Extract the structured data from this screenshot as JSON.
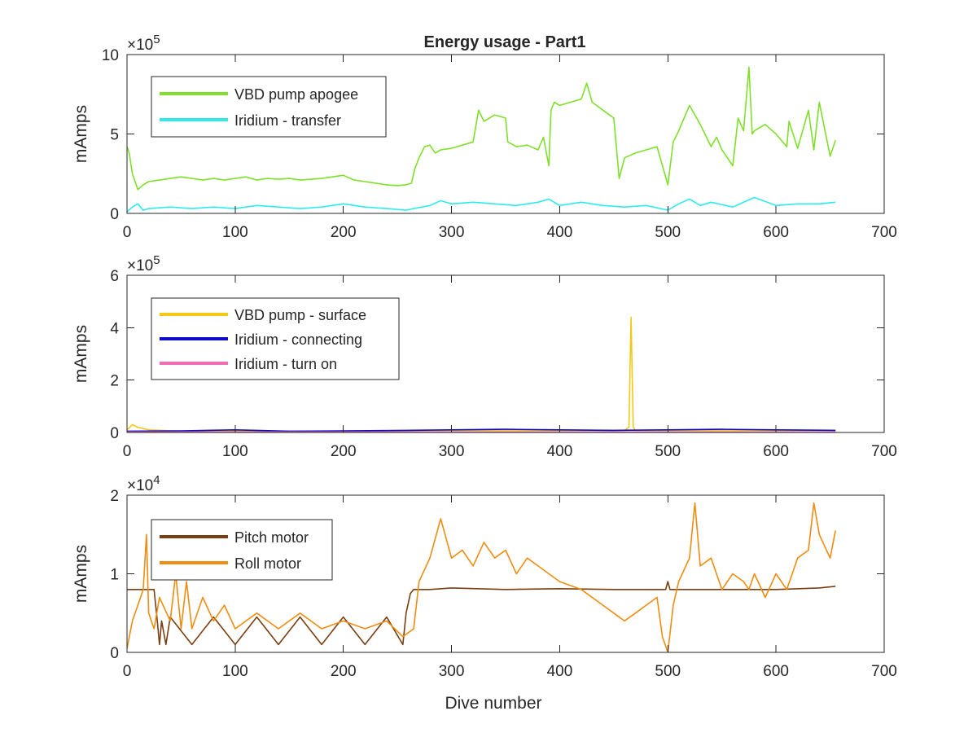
{
  "figure_title": "Energy usage - Part1",
  "colors": {
    "axis": "#262626",
    "vbd_apogee": "#7FE02A",
    "iridium_transfer": "#2DEBEB",
    "vbd_surface": "#F5C815",
    "iridium_connecting": "#0A0AC8",
    "iridium_turn_on": "#F06EB4",
    "pitch_motor": "#7A3E12",
    "roll_motor": "#F08C0F"
  },
  "chart_data": [
    {
      "type": "line",
      "title": "Energy usage - Part1",
      "ylabel": "mAmps",
      "xlabel": "",
      "xlim": [
        0,
        700
      ],
      "ylim": [
        0,
        1000000
      ],
      "exponent_label": "×10",
      "exponent_power": "5",
      "xticks": [
        0,
        100,
        200,
        300,
        400,
        500,
        600,
        700
      ],
      "xtick_labels": [
        "0",
        "100",
        "200",
        "300",
        "400",
        "500",
        "600",
        "700"
      ],
      "yticks": [
        0,
        500000,
        1000000
      ],
      "ytick_labels": [
        "0",
        "5",
        "10"
      ],
      "legend": "top-left",
      "grid": false,
      "series": [
        {
          "name": "VBD pump apogee",
          "color": "#7FE02A",
          "x": [
            0,
            2,
            5,
            10,
            15,
            20,
            30,
            40,
            50,
            60,
            70,
            80,
            90,
            100,
            110,
            120,
            130,
            140,
            150,
            160,
            170,
            180,
            190,
            200,
            210,
            220,
            230,
            240,
            250,
            258,
            263,
            266,
            270,
            275,
            280,
            285,
            290,
            300,
            310,
            320,
            325,
            330,
            340,
            350,
            352,
            360,
            370,
            380,
            385,
            390,
            392,
            395,
            400,
            410,
            420,
            425,
            430,
            440,
            450,
            455,
            460,
            470,
            480,
            490,
            500,
            505,
            510,
            520,
            530,
            540,
            545,
            550,
            560,
            565,
            570,
            575,
            578,
            580,
            590,
            600,
            610,
            612,
            620,
            630,
            635,
            640,
            650,
            655
          ],
          "y": [
            420000,
            380000,
            250000,
            150000,
            180000,
            200000,
            210000,
            220000,
            230000,
            220000,
            210000,
            220000,
            210000,
            220000,
            230000,
            210000,
            220000,
            215000,
            220000,
            210000,
            215000,
            220000,
            230000,
            240000,
            210000,
            200000,
            190000,
            180000,
            175000,
            180000,
            190000,
            280000,
            350000,
            420000,
            430000,
            380000,
            400000,
            410000,
            430000,
            450000,
            650000,
            580000,
            620000,
            600000,
            450000,
            420000,
            430000,
            400000,
            480000,
            300000,
            650000,
            700000,
            680000,
            700000,
            720000,
            820000,
            700000,
            650000,
            600000,
            220000,
            350000,
            380000,
            400000,
            420000,
            180000,
            450000,
            520000,
            680000,
            560000,
            420000,
            480000,
            400000,
            300000,
            600000,
            520000,
            920000,
            500000,
            520000,
            560000,
            500000,
            420000,
            580000,
            410000,
            650000,
            400000,
            700000,
            360000,
            460000
          ]
        },
        {
          "name": "Iridium - transfer",
          "color": "#2DEBEB",
          "x": [
            0,
            5,
            10,
            15,
            20,
            40,
            60,
            80,
            100,
            120,
            140,
            160,
            180,
            200,
            220,
            240,
            258,
            265,
            280,
            290,
            300,
            320,
            340,
            360,
            380,
            390,
            400,
            420,
            440,
            460,
            480,
            500,
            510,
            520,
            530,
            540,
            560,
            580,
            600,
            620,
            640,
            655
          ],
          "y": [
            10000,
            40000,
            60000,
            20000,
            30000,
            40000,
            30000,
            40000,
            30000,
            50000,
            40000,
            30000,
            40000,
            60000,
            40000,
            30000,
            20000,
            30000,
            50000,
            80000,
            60000,
            70000,
            60000,
            50000,
            70000,
            90000,
            50000,
            70000,
            50000,
            40000,
            50000,
            20000,
            60000,
            90000,
            50000,
            70000,
            40000,
            100000,
            50000,
            60000,
            60000,
            70000
          ]
        }
      ]
    },
    {
      "type": "line",
      "title": "",
      "ylabel": "mAmps",
      "xlabel": "",
      "xlim": [
        0,
        700
      ],
      "ylim": [
        0,
        600000
      ],
      "exponent_label": "×10",
      "exponent_power": "5",
      "xticks": [
        0,
        100,
        200,
        300,
        400,
        500,
        600,
        700
      ],
      "xtick_labels": [
        "0",
        "100",
        "200",
        "300",
        "400",
        "500",
        "600",
        "700"
      ],
      "yticks": [
        0,
        200000,
        400000,
        600000
      ],
      "ytick_labels": [
        "0",
        "2",
        "4",
        "6"
      ],
      "legend": "top-left",
      "grid": false,
      "series": [
        {
          "name": "VBD pump - surface",
          "color": "#F5C815",
          "x": [
            0,
            5,
            10,
            20,
            50,
            100,
            200,
            300,
            400,
            460,
            464,
            466,
            468,
            470,
            500,
            550,
            600,
            655
          ],
          "y": [
            10000,
            30000,
            20000,
            10000,
            5000,
            5000,
            5000,
            8000,
            8000,
            8000,
            20000,
            440000,
            20000,
            8000,
            8000,
            8000,
            8000,
            8000
          ]
        },
        {
          "name": "Iridium - connecting",
          "color": "#0A0AC8",
          "x": [
            0,
            50,
            100,
            150,
            200,
            258,
            300,
            350,
            400,
            450,
            500,
            550,
            600,
            655
          ],
          "y": [
            5000,
            6000,
            10000,
            5000,
            6000,
            8000,
            10000,
            12000,
            10000,
            8000,
            10000,
            12000,
            10000,
            8000
          ]
        },
        {
          "name": "Iridium - turn on",
          "color": "#F06EB4",
          "x": [
            0,
            100,
            200,
            300,
            400,
            500,
            600,
            655
          ],
          "y": [
            2000,
            2000,
            2000,
            2000,
            2000,
            2000,
            2000,
            2000
          ]
        }
      ]
    },
    {
      "type": "line",
      "title": "",
      "ylabel": "mAmps",
      "xlabel": "Dive number",
      "xlim": [
        0,
        700
      ],
      "ylim": [
        0,
        20000
      ],
      "exponent_label": "×10",
      "exponent_power": "4",
      "xticks": [
        0,
        100,
        200,
        300,
        400,
        500,
        600,
        700
      ],
      "xtick_labels": [
        "0",
        "100",
        "200",
        "300",
        "400",
        "500",
        "600",
        "700"
      ],
      "yticks": [
        0,
        10000,
        20000
      ],
      "ytick_labels": [
        "0",
        "1",
        "2"
      ],
      "legend": "top-left",
      "grid": false,
      "series": [
        {
          "name": "Pitch motor",
          "color": "#7A3E12",
          "x": [
            0,
            25,
            28,
            30,
            32,
            36,
            40,
            60,
            80,
            100,
            120,
            140,
            160,
            180,
            200,
            220,
            240,
            255,
            258,
            262,
            265,
            270,
            280,
            300,
            350,
            400,
            450,
            498,
            500,
            502,
            505,
            550,
            600,
            640,
            655
          ],
          "y": [
            8000,
            8000,
            4000,
            1000,
            4000,
            1000,
            4500,
            1000,
            4500,
            1000,
            4500,
            1000,
            4500,
            1000,
            4500,
            1000,
            4500,
            1000,
            5000,
            7500,
            8000,
            8000,
            8000,
            8200,
            8000,
            8100,
            8000,
            8000,
            9000,
            8000,
            8000,
            8000,
            8000,
            8200,
            8400
          ]
        },
        {
          "name": "Roll motor",
          "color": "#F08C0F",
          "x": [
            0,
            5,
            10,
            15,
            18,
            20,
            25,
            30,
            40,
            45,
            50,
            55,
            60,
            70,
            80,
            90,
            100,
            120,
            140,
            160,
            180,
            200,
            220,
            240,
            255,
            265,
            270,
            280,
            290,
            300,
            310,
            320,
            330,
            340,
            350,
            360,
            370,
            380,
            400,
            420,
            440,
            450,
            460,
            470,
            480,
            490,
            495,
            500,
            505,
            510,
            520,
            525,
            530,
            540,
            550,
            560,
            570,
            575,
            580,
            590,
            600,
            610,
            620,
            630,
            635,
            640,
            650,
            655
          ],
          "y": [
            500,
            4000,
            6000,
            8000,
            15000,
            5000,
            3000,
            7000,
            4000,
            10000,
            3000,
            9000,
            3000,
            7000,
            4000,
            6000,
            3000,
            5000,
            3000,
            5000,
            3000,
            4000,
            3000,
            4000,
            2000,
            3000,
            9000,
            12000,
            17000,
            12000,
            13000,
            11000,
            14000,
            12000,
            13000,
            10000,
            12000,
            11000,
            9000,
            8000,
            6000,
            5000,
            4000,
            5000,
            6000,
            7000,
            2000,
            0,
            6000,
            9000,
            12000,
            19000,
            11000,
            12000,
            8000,
            10000,
            9000,
            8000,
            10000,
            7000,
            10000,
            8000,
            12000,
            13000,
            19000,
            15000,
            12000,
            15500
          ]
        }
      ]
    }
  ]
}
